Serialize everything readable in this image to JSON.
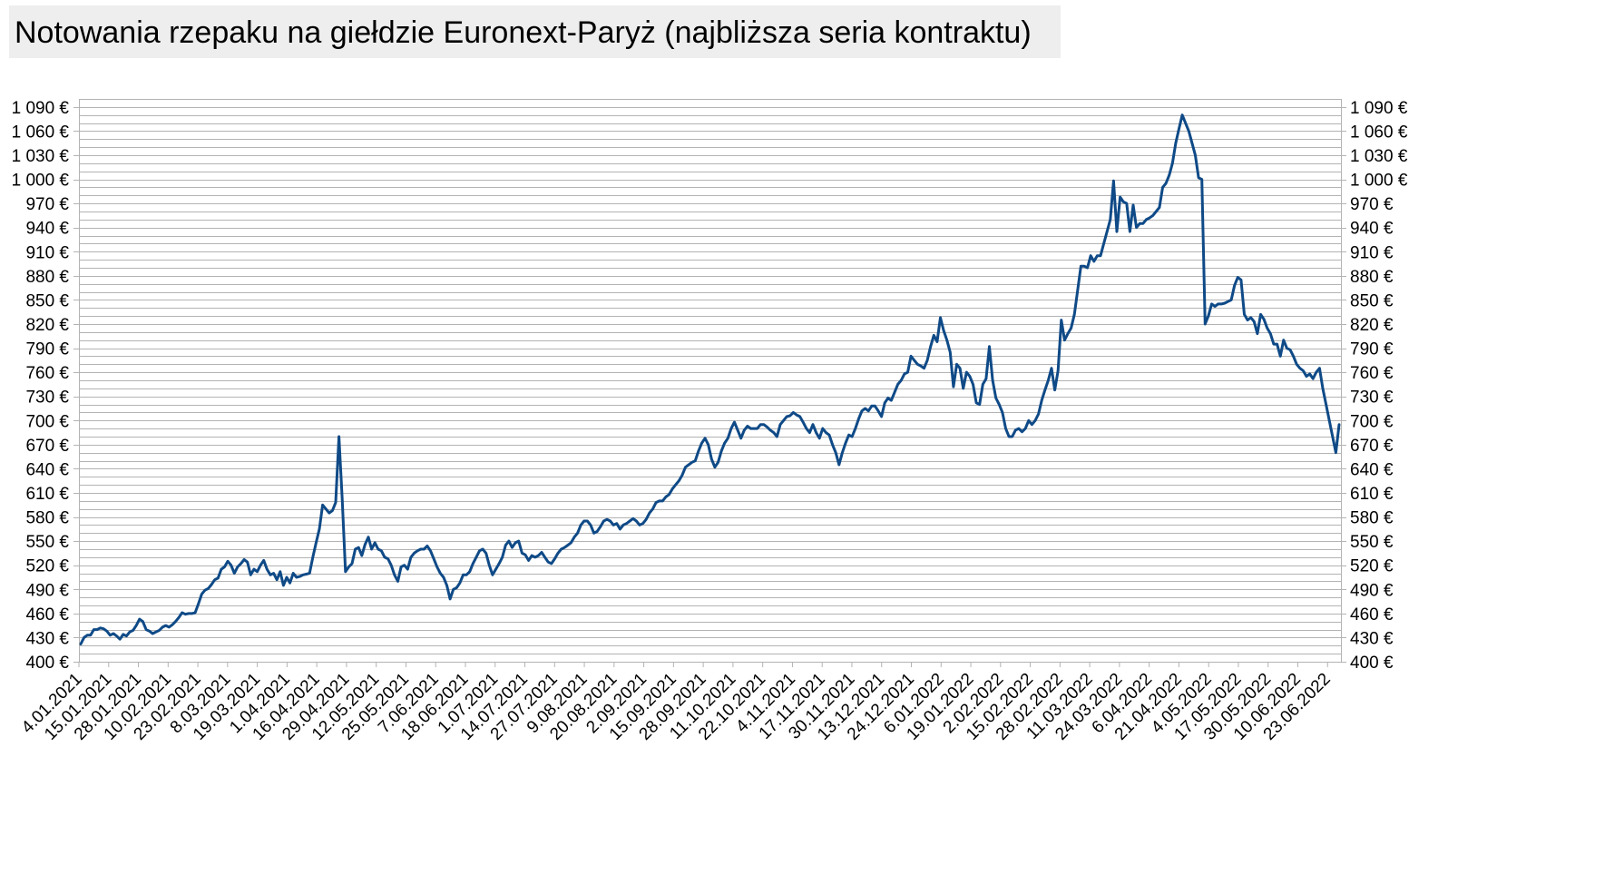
{
  "title": "Notowania rzepaku na giełdzie Euronext-Paryż (najbliższa seria kontraktu)",
  "colors": {
    "line": "#0f4a87",
    "grid": "#b3b3b3",
    "title_bg": "#eeeeee"
  },
  "chart_data": {
    "type": "line",
    "title": "Notowania rzepaku na giełdzie Euronext-Paryż (najbliższa seria kontraktu)",
    "xlabel": "",
    "ylabel": "",
    "ylim": [
      400,
      1100
    ],
    "grid": true,
    "legend": "none",
    "y_ticks": [
      400,
      430,
      460,
      490,
      520,
      550,
      580,
      610,
      640,
      670,
      700,
      730,
      760,
      790,
      820,
      850,
      880,
      910,
      940,
      970,
      1000,
      1030,
      1060,
      1090
    ],
    "y_tick_labels": [
      "400 €",
      "430 €",
      "460 €",
      "490 €",
      "520 €",
      "550 €",
      "580 €",
      "610 €",
      "640 €",
      "670 €",
      "700 €",
      "730 €",
      "760 €",
      "790 €",
      "820 €",
      "850 €",
      "880 €",
      "910 €",
      "940 €",
      "970 €",
      "1 000 €",
      "1 030 €",
      "1 060 €",
      "1 090 €"
    ],
    "x_tick_labels": [
      "4.01.2021",
      "15.01.2021",
      "28.01.2021",
      "10.02.2021",
      "23.02.2021",
      "8.03.2021",
      "19.03.2021",
      "1.04.2021",
      "16.04.2021",
      "29.04.2021",
      "12.05.2021",
      "25.05.2021",
      "7.06.2021",
      "18.06.2021",
      "1.07.2021",
      "14.07.2021",
      "27.07.2021",
      "9.08.2021",
      "20.08.2021",
      "2.09.2021",
      "15.09.2021",
      "28.09.2021",
      "11.10.2021",
      "22.10.2021",
      "4.11.2021",
      "17.11.2021",
      "30.11.2021",
      "13.12.2021",
      "24.12.2021",
      "6.01.2022",
      "19.01.2022",
      "2.02.2022",
      "15.02.2022",
      "28.02.2022",
      "11.03.2022",
      "24.03.2022",
      "6.04.2022",
      "21.04.2022",
      "4.05.2022",
      "17.05.2022",
      "30.05.2022",
      "10.06.2022",
      "23.06.2022"
    ],
    "x_first": "4.01.2021",
    "x_last": "30.06.2022",
    "series": [
      {
        "values": [
          422,
          430,
          433,
          433,
          440,
          440,
          442,
          441,
          438,
          433,
          435,
          432,
          428,
          434,
          432,
          437,
          439,
          445,
          453,
          450,
          440,
          438,
          435,
          437,
          439,
          443,
          445,
          443,
          446,
          450,
          455,
          461,
          459,
          460,
          460,
          461,
          472,
          484,
          489,
          491,
          496,
          502,
          504,
          515,
          518,
          525,
          520,
          510,
          518,
          522,
          527,
          524,
          508,
          515,
          512,
          520,
          526,
          515,
          508,
          510,
          502,
          512,
          495,
          505,
          498,
          510,
          505,
          506,
          508,
          509,
          510,
          530,
          548,
          565,
          595,
          590,
          585,
          588,
          598,
          680,
          602,
          512,
          518,
          522,
          540,
          542,
          532,
          546,
          555,
          540,
          548,
          540,
          538,
          530,
          528,
          520,
          508,
          500,
          518,
          520,
          515,
          530,
          535,
          538,
          540,
          540,
          544,
          538,
          528,
          518,
          510,
          505,
          495,
          478,
          490,
          492,
          498,
          508,
          508,
          512,
          522,
          530,
          538,
          540,
          535,
          520,
          508,
          515,
          522,
          530,
          545,
          550,
          542,
          548,
          550,
          535,
          533,
          526,
          532,
          530,
          532,
          536,
          530,
          524,
          522,
          528,
          535,
          540,
          542,
          545,
          548,
          555,
          560,
          570,
          575,
          575,
          570,
          560,
          562,
          568,
          575,
          577,
          575,
          570,
          572,
          565,
          570,
          572,
          575,
          578,
          575,
          570,
          572,
          577,
          585,
          590,
          598,
          600,
          600,
          605,
          608,
          615,
          620,
          625,
          632,
          642,
          645,
          648,
          650,
          662,
          672,
          678,
          670,
          652,
          642,
          648,
          662,
          672,
          678,
          690,
          698,
          688,
          678,
          688,
          693,
          690,
          690,
          690,
          695,
          695,
          692,
          688,
          685,
          680,
          695,
          700,
          705,
          706,
          710,
          707,
          705,
          698,
          690,
          685,
          695,
          685,
          678,
          690,
          685,
          682,
          670,
          660,
          645,
          660,
          672,
          682,
          680,
          690,
          702,
          712,
          715,
          712,
          718,
          718,
          712,
          705,
          722,
          728,
          725,
          735,
          745,
          750,
          758,
          760,
          780,
          775,
          770,
          768,
          765,
          775,
          792,
          806,
          798,
          828,
          812,
          800,
          785,
          742,
          770,
          765,
          740,
          760,
          755,
          745,
          722,
          720,
          745,
          752,
          792,
          750,
          728,
          720,
          710,
          690,
          680,
          680,
          688,
          690,
          686,
          690,
          700,
          695,
          700,
          708,
          725,
          738,
          750,
          765,
          738,
          762,
          825,
          800,
          808,
          815,
          832,
          862,
          892,
          892,
          890,
          905,
          898,
          905,
          905,
          920,
          935,
          950,
          998,
          935,
          978,
          972,
          970,
          935,
          968,
          940,
          945,
          945,
          950,
          952,
          955,
          960,
          965,
          990,
          995,
          1005,
          1020,
          1045,
          1063,
          1080,
          1070,
          1060,
          1045,
          1030,
          1002,
          1000,
          820,
          830,
          845,
          842,
          845,
          845,
          846,
          848,
          850,
          868,
          878,
          875,
          832,
          825,
          828,
          823,
          808,
          832,
          826,
          815,
          808,
          795,
          795,
          780,
          800,
          790,
          788,
          780,
          770,
          765,
          762,
          755,
          758,
          752,
          760,
          765,
          740,
          720,
          700,
          680,
          660,
          695
        ]
      }
    ]
  }
}
